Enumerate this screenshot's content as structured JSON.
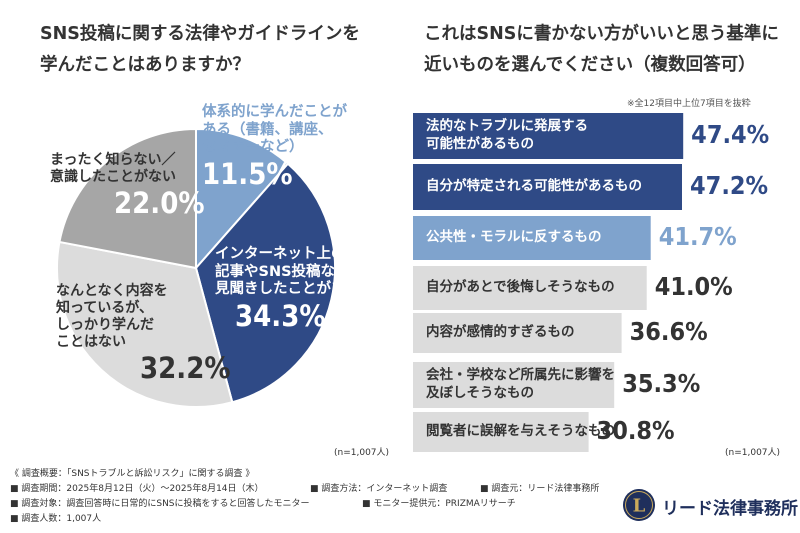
{
  "colors": {
    "dark_blue": "#2f4a86",
    "light_blue": "#7fa3cd",
    "dark_gray": "#a6a6a6",
    "light_gray": "#dcdcdc",
    "text": "#333333",
    "white": "#ffffff"
  },
  "left_chart": {
    "title_lines": [
      "SNS投稿に関する法律やガイドラインを",
      "学んだことはありますか？"
    ],
    "n_label": "(n=1,007人)"
  },
  "right_chart": {
    "title_lines": [
      "これはSNSに書かない方がいいと思う基準に",
      "近いものを選んでください（複数回答可）"
    ],
    "note": "※全12項目中上位7項目を抜粋",
    "n_label": "(n=1,007人)"
  },
  "chart_data": [
    {
      "type": "pie",
      "title": "SNS投稿に関する法律やガイドラインを学んだことはありますか？",
      "slices": [
        {
          "label_lines": [
            "体系的に学んだことが",
            "ある（書籍、講座、",
            "セミナーなど）"
          ],
          "value": 11.5,
          "value_text": "11.5%",
          "color": "#7fa3cd",
          "label_color": "#7fa3cd",
          "pct_color": "#ffffff"
        },
        {
          "label_lines": [
            "インターネット上の",
            "記事やSNS投稿などで",
            "見聞きしたことがある"
          ],
          "value": 34.3,
          "value_text": "34.3%",
          "color": "#2f4a86",
          "label_color": "#ffffff",
          "pct_color": "#ffffff"
        },
        {
          "label_lines": [
            "なんとなく内容を",
            "知っているが、",
            "しっかり学んだ",
            "ことはない"
          ],
          "value": 32.2,
          "value_text": "32.2%",
          "color": "#dcdcdc",
          "label_color": "#333333",
          "pct_color": "#333333"
        },
        {
          "label_lines": [
            "まったく知らない／",
            "意識したことがない"
          ],
          "value": 22.0,
          "value_text": "22.0%",
          "color": "#a6a6a6",
          "label_color": "#333333",
          "pct_color": "#ffffff"
        }
      ]
    },
    {
      "type": "bar",
      "orientation": "horizontal",
      "title": "これはSNSに書かない方がいいと思う基準に近いものを選んでください（複数回答可）",
      "xlim": [
        0,
        50
      ],
      "categories": [
        [
          "法的なトラブルに発展する",
          "可能性があるもの"
        ],
        [
          "自分が特定される可能性があるもの"
        ],
        [
          "公共性・モラルに反するもの"
        ],
        [
          "自分があとで後悔しそうなもの"
        ],
        [
          "内容が感情的すぎるもの"
        ],
        [
          "会社・学校など所属先に影響を",
          "及ぼしそうなもの"
        ],
        [
          "閲覧者に誤解を与えそうなもの"
        ]
      ],
      "values": [
        47.4,
        47.2,
        41.7,
        41.0,
        36.6,
        35.3,
        30.8
      ],
      "value_texts": [
        "47.4%",
        "47.2%",
        "41.7%",
        "41.0%",
        "36.6%",
        "35.3%",
        "30.8%"
      ],
      "bar_colors": [
        "#2f4a86",
        "#2f4a86",
        "#7fa3cd",
        "#dcdcdc",
        "#dcdcdc",
        "#dcdcdc",
        "#dcdcdc"
      ],
      "label_colors": [
        "#ffffff",
        "#ffffff",
        "#ffffff",
        "#333333",
        "#333333",
        "#333333",
        "#333333"
      ],
      "value_colors": [
        "#2f4a86",
        "#2f4a86",
        "#7fa3cd",
        "#333333",
        "#333333",
        "#333333",
        "#333333"
      ]
    }
  ],
  "footer": {
    "survey_title": "《 調査概要：「SNSトラブルと訴訟リスク」に関する調査 》",
    "rows": [
      [
        "■ 調査期間：2025年8月12日（火）～2025年8月14日（木）",
        "■ 調査方法：インターネット調査",
        "■ 調査元：リード法律事務所"
      ],
      [
        "■ 調査対象：調査回答時に日常的にSNSに投稿をすると回答したモニター",
        "■ モニター提供元：PRIZMAリサーチ"
      ],
      [
        "■ 調査人数：1,007人"
      ]
    ]
  },
  "logo": {
    "mark_text": "L",
    "text": "リード法律事務所",
    "icon": "law-firm-logo-icon"
  }
}
